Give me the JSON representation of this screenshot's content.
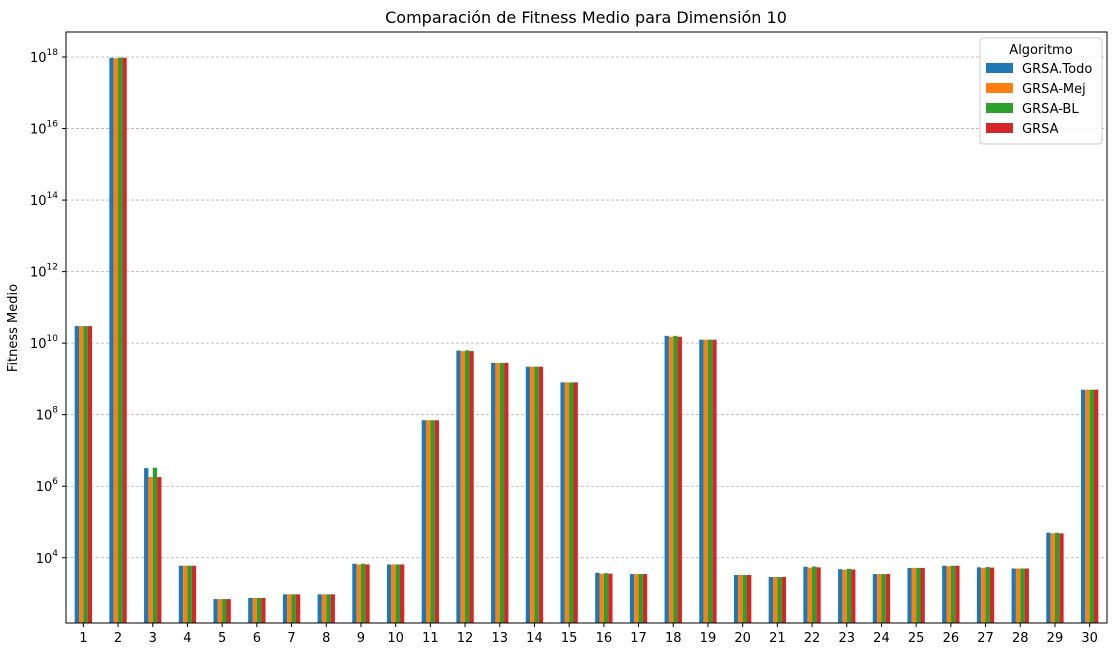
{
  "chart_data": {
    "type": "bar",
    "title": "Comparación de Fitness Medio para Dimensión 10",
    "xlabel": "",
    "ylabel": "Fitness Medio",
    "yscale": "log",
    "ylim": [
      150,
      5e+18
    ],
    "yticks": [
      {
        "value": 10000,
        "base": "10",
        "exp": "4"
      },
      {
        "value": 1000000,
        "base": "10",
        "exp": "6"
      },
      {
        "value": 100000000,
        "base": "10",
        "exp": "8"
      },
      {
        "value": 10000000000,
        "base": "10",
        "exp": "10"
      },
      {
        "value": 1000000000000,
        "base": "10",
        "exp": "12"
      },
      {
        "value": 100000000000000,
        "base": "10",
        "exp": "14"
      },
      {
        "value": 10000000000000000,
        "base": "10",
        "exp": "16"
      },
      {
        "value": 1000000000000000000,
        "base": "10",
        "exp": "18"
      }
    ],
    "grid": true,
    "legend_position": "top-right",
    "legend_title": "Algoritmo",
    "categories": [
      "1",
      "2",
      "3",
      "4",
      "5",
      "6",
      "7",
      "8",
      "9",
      "10",
      "11",
      "12",
      "13",
      "14",
      "15",
      "16",
      "17",
      "18",
      "19",
      "20",
      "21",
      "22",
      "23",
      "24",
      "25",
      "26",
      "27",
      "28",
      "29",
      "30"
    ],
    "series": [
      {
        "name": "GRSA.Todo",
        "color": "#1f77b4",
        "values": [
          30000000000.0,
          9.5e+17,
          3200000.0,
          6000,
          700,
          750,
          950,
          950,
          6800,
          6500,
          70000000.0,
          6200000000.0,
          2800000000.0,
          2200000000.0,
          800000000.0,
          3800,
          3500,
          16000000000.0,
          12500000000.0,
          3300,
          2900,
          5600,
          4800,
          3500,
          5200,
          6000,
          5400,
          5000,
          50000.0,
          500000000.0
        ]
      },
      {
        "name": "GRSA-Mej",
        "color": "#ff7f0e",
        "values": [
          30000000000.0,
          9.2e+17,
          1800000.0,
          6000,
          700,
          750,
          950,
          950,
          6500,
          6500,
          70000000.0,
          6000000000.0,
          2800000000.0,
          2200000000.0,
          800000000.0,
          3600,
          3500,
          15000000000.0,
          12500000000.0,
          3300,
          2900,
          5300,
          4600,
          3500,
          5200,
          5800,
          5200,
          5000,
          48000.0,
          500000000.0
        ]
      },
      {
        "name": "GRSA-BL",
        "color": "#2ca02c",
        "values": [
          30000000000.0,
          9.6e+17,
          3300000.0,
          6000,
          700,
          750,
          950,
          950,
          6800,
          6500,
          70000000.0,
          6300000000.0,
          2800000000.0,
          2200000000.0,
          800000000.0,
          3700,
          3500,
          16000000000.0,
          12500000000.0,
          3300,
          2900,
          5700,
          4900,
          3500,
          5200,
          6000,
          5500,
          5000,
          50000.0,
          500000000.0
        ]
      },
      {
        "name": "GRSA",
        "color": "#d62728",
        "values": [
          30000000000.0,
          9.5e+17,
          1800000.0,
          6000,
          700,
          750,
          950,
          950,
          6500,
          6500,
          70000000.0,
          6000000000.0,
          2800000000.0,
          2200000000.0,
          800000000.0,
          3600,
          3500,
          15000000000.0,
          12500000000.0,
          3300,
          2900,
          5400,
          4700,
          3500,
          5200,
          6000,
          5300,
          5000,
          48000.0,
          500000000.0
        ]
      }
    ]
  }
}
